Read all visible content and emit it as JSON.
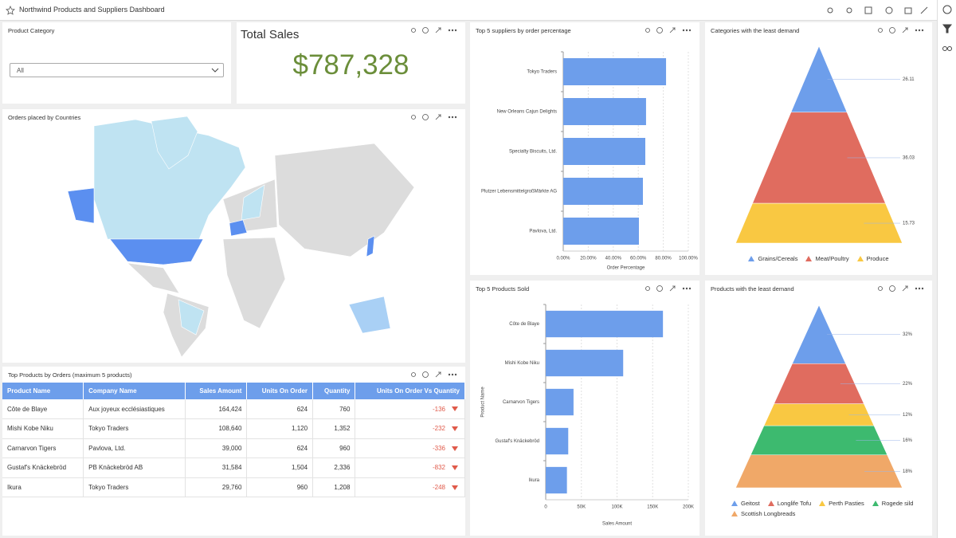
{
  "header": {
    "title": "Northwind Products and Suppliers Dashboard"
  },
  "filter": {
    "title": "Product Category",
    "selected": "All"
  },
  "kpi": {
    "title": "Total Sales",
    "value": "$787,328"
  },
  "map": {
    "title": "Orders placed by Countries"
  },
  "table": {
    "title": "Top Products by Orders (maximum 5 products)",
    "columns": [
      "Product Name",
      "Company Name",
      "Sales Amount",
      "Units On Order",
      "Quantity",
      "Units On Order Vs Quantity"
    ],
    "rows": [
      [
        "Côte de Blaye",
        "Aux joyeux ecclésiastiques",
        "164,424",
        "624",
        "760",
        "-136"
      ],
      [
        "Mishi Kobe Niku",
        "Tokyo Traders",
        "108,640",
        "1,120",
        "1,352",
        "-232"
      ],
      [
        "Carnarvon Tigers",
        "Pavlova, Ltd.",
        "39,000",
        "624",
        "960",
        "-336"
      ],
      [
        "Gustaf's Knäckebröd",
        "PB Knäckebröd AB",
        "31,584",
        "1,504",
        "2,336",
        "-832"
      ],
      [
        "Ikura",
        "Tokyo Traders",
        "29,760",
        "960",
        "1,208",
        "-248"
      ]
    ]
  },
  "chart_data": [
    {
      "type": "bar",
      "title": "Top 5 suppliers by order percentage",
      "categories": [
        "Tokyo Traders",
        "New Orleans Cajun Delights",
        "Specialty Biscuits, Ltd.",
        "Plutzer LebensmittelgroßMärkte AG",
        "Pavlova, Ltd."
      ],
      "values": [
        82.2,
        66.2,
        65.6,
        63.7,
        60.5
      ],
      "color": "#6d9eeb",
      "xlim": [
        0,
        100
      ],
      "xticks": [
        {
          "value": 0,
          "label": "0.00%"
        },
        {
          "value": 20,
          "label": "20.00%"
        },
        {
          "value": 40,
          "label": "40.00%"
        },
        {
          "value": 60,
          "label": "60.00%"
        },
        {
          "value": 80,
          "label": "80.00%"
        },
        {
          "value": 100,
          "label": "100.00%"
        }
      ],
      "x_label": "Order Percentage",
      "grid": true
    },
    {
      "type": "bar",
      "title": "Top 5 Products Sold",
      "categories": [
        "Côte de Blaye",
        "Mishi Kobe Niku",
        "Carnarvon Tigers",
        "Gustaf's Knäckebröd",
        "Ikura"
      ],
      "values": [
        164424,
        108640,
        39000,
        31584,
        29760
      ],
      "color": "#6d9eeb",
      "xlim": [
        0,
        200000
      ],
      "xticks": [
        0,
        {
          "value": 50000,
          "label": "50K"
        },
        {
          "value": 100000,
          "label": "100K"
        },
        {
          "value": 150000,
          "label": "150K"
        },
        {
          "value": 200000,
          "label": "200K"
        }
      ],
      "x_label": "Sales Amount",
      "y_label": "Product Name",
      "grid": true
    },
    {
      "type": "pyramid",
      "title": "Categories with the least demand",
      "categories": [
        "Grains/Cereals",
        "Meat/Poultry",
        "Produce"
      ],
      "values": [
        26.11,
        36.03,
        15.73
      ],
      "colors": [
        "#6d9eeb",
        "#e06c5f",
        "#f9c842"
      ]
    },
    {
      "type": "pyramid",
      "title": "Products with the least demand",
      "categories": [
        "Geitost",
        "Longlife Tofu",
        "Perth Pasties",
        "Rogede sild",
        "Scottish Longbreads"
      ],
      "values": [
        32,
        22,
        12,
        16,
        18
      ],
      "value_labels": [
        "32%",
        "22%",
        "12%",
        "16%",
        "18%"
      ],
      "colors": [
        "#6d9eeb",
        "#e06c5f",
        "#f9c842",
        "#3dba6f",
        "#f0a868"
      ]
    }
  ]
}
